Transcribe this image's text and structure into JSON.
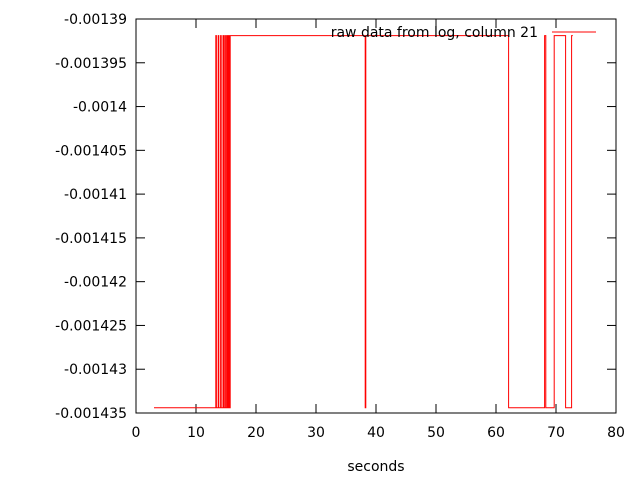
{
  "chart_data": {
    "type": "line",
    "title": "",
    "xlabel": "seconds",
    "ylabel": "",
    "xlim": [
      0,
      80
    ],
    "ylim": [
      -0.001435,
      -0.00139
    ],
    "x_ticks": [
      0,
      10,
      20,
      30,
      40,
      50,
      60,
      70,
      80
    ],
    "x_tick_labels": [
      "0",
      "10",
      "20",
      "30",
      "40",
      "50",
      "60",
      "70",
      "80"
    ],
    "y_ticks": [
      -0.00139,
      -0.001395,
      -0.0014,
      -0.001405,
      -0.00141,
      -0.001415,
      -0.00142,
      -0.001425,
      -0.00143,
      -0.001435
    ],
    "y_tick_labels": [
      "-0.00139",
      "-0.001395",
      "-0.0014",
      "-0.001405",
      "-0.00141",
      "-0.001415",
      "-0.00142",
      "-0.001425",
      "-0.00143",
      "-0.001435"
    ],
    "grid": false,
    "legend_position": "top-right",
    "series": [
      {
        "name": "raw data from log, column 21",
        "color": "#ff0000",
        "step": true,
        "x": [
          3,
          13.3,
          13.4,
          13.7,
          13.8,
          14.1,
          14.2,
          14.5,
          14.6,
          14.8,
          14.9,
          15.1,
          15.2,
          15.3,
          15.4,
          15.5,
          15.6,
          15.7,
          15.8,
          38.2,
          38.3,
          62.1,
          62.2,
          68.1,
          68.3,
          69.7,
          70.1,
          71.6,
          71.9,
          72.6,
          72.8
        ],
        "values": [
          -0.0014344,
          -0.0013919,
          -0.0014344,
          -0.0013919,
          -0.0014344,
          -0.0013919,
          -0.0014344,
          -0.0013919,
          -0.0014344,
          -0.0013919,
          -0.0014344,
          -0.0013919,
          -0.0014344,
          -0.0013919,
          -0.0014344,
          -0.0013919,
          -0.0014344,
          -0.0013919,
          -0.0013919,
          -0.0014344,
          -0.0013919,
          -0.0014344,
          -0.0014344,
          -0.0013919,
          -0.0014344,
          -0.0013919,
          -0.0013919,
          -0.0014344,
          -0.0014344,
          -0.0013919,
          -0.0013919
        ]
      }
    ]
  }
}
